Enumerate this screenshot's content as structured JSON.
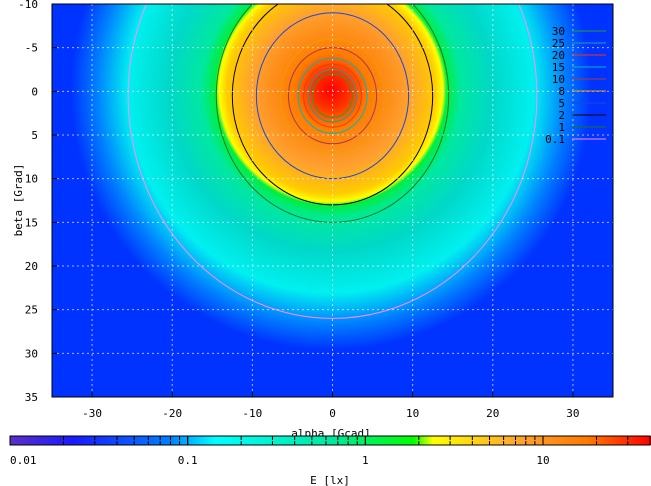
{
  "chart_data": {
    "type": "heatmap",
    "xlabel": "alpha [Gcad]",
    "ylabel": "beta [Grad]",
    "xlim": [
      -35,
      35
    ],
    "ylim": [
      -10,
      35
    ],
    "y_reversed": true,
    "xticks": [
      -30,
      -20,
      -10,
      0,
      10,
      20,
      30
    ],
    "yticks": [
      -10,
      -5,
      0,
      5,
      10,
      15,
      20,
      25,
      30,
      35
    ],
    "grid": true,
    "legend_position": "top-right",
    "contour_center": [
      0,
      0.5
    ],
    "contours": [
      {
        "label": "30",
        "color": "#2a9f2a",
        "radius": 2.5
      },
      {
        "label": "25",
        "color": "#1aa0a0",
        "radius": 3.0
      },
      {
        "label": "20",
        "color": "#ff3300",
        "radius": 3.6
      },
      {
        "label": "15",
        "color": "#00b8b8",
        "radius": 4.3
      },
      {
        "label": "10",
        "color": "#a04040",
        "radius": 5.5
      },
      {
        "label": "8",
        "color": "#e8a000",
        "radius": 6.5
      },
      {
        "label": "5",
        "color": "#1a4ad0",
        "radius": 9.5
      },
      {
        "label": "2",
        "color": "#000000",
        "radius": 12.5
      },
      {
        "label": "1",
        "color": "#1a7a1a",
        "radius": 14.5
      },
      {
        "label": "0.1",
        "color": "#ff88ff",
        "radius": 25.5
      }
    ],
    "colorbar": {
      "label": "E [lx]",
      "scale": "log",
      "range": [
        0.01,
        40
      ],
      "ticks": [
        {
          "value": 0.01,
          "label": "0.01"
        },
        {
          "value": 0.1,
          "label": "0.1"
        },
        {
          "value": 1,
          "label": "1"
        },
        {
          "value": 10,
          "label": "10"
        }
      ],
      "colors": [
        "#5a2fc8",
        "#0000ff",
        "#00ffff",
        "#00ff00",
        "#ffff00",
        "#ff8000",
        "#ff0000"
      ]
    }
  }
}
